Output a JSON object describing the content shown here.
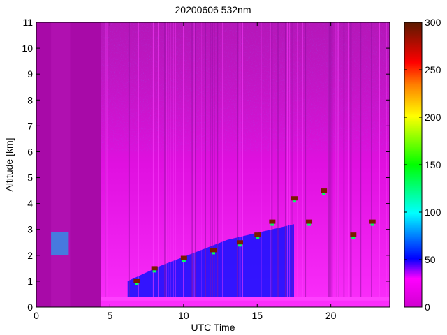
{
  "chart_data": {
    "type": "heatmap",
    "title": "20200606 532nm",
    "xlabel": "UTC Time",
    "ylabel": "Altitude [km]",
    "xlim": [
      0,
      24
    ],
    "ylim": [
      0,
      11
    ],
    "xticks": [
      0,
      5,
      10,
      15,
      20
    ],
    "yticks": [
      0,
      1,
      2,
      3,
      4,
      5,
      6,
      7,
      8,
      9,
      10,
      11
    ],
    "colorbar": {
      "range": [
        0,
        300
      ],
      "ticks": [
        0,
        50,
        100,
        150,
        200,
        250,
        300
      ],
      "colormap": [
        "#d400d4",
        "#ff00ff",
        "#0000ff",
        "#00ffff",
        "#00ff00",
        "#ffff00",
        "#ff8000",
        "#ff0000",
        "#5a1a00"
      ]
    },
    "background_color": "#b010b0",
    "data_gap_intervals_utc": [
      [
        0,
        1.0
      ],
      [
        2.3,
        4.4
      ]
    ],
    "features": [
      {
        "type": "enhanced_signal_region",
        "x_range": [
          4.4,
          24
        ],
        "y_range": [
          0,
          11
        ],
        "color": "#ff00ff"
      },
      {
        "type": "near_surface_layer",
        "x_range": [
          4.4,
          24
        ],
        "y_range": [
          0.25,
          0.4
        ],
        "color": "#ff40ff"
      },
      {
        "type": "aerosol_layer",
        "x_range": [
          6.2,
          17.5
        ],
        "top_km": [
          1.0,
          1.6,
          2.1,
          2.6,
          2.9,
          3.2
        ],
        "color": "#1010ff"
      },
      {
        "type": "cloud_edges",
        "points": [
          [
            6.8,
            1.0
          ],
          [
            8.0,
            1.5
          ],
          [
            10.0,
            1.9
          ],
          [
            12.0,
            2.2
          ],
          [
            13.8,
            2.5
          ],
          [
            15.0,
            2.8
          ],
          [
            16.0,
            3.3
          ],
          [
            17.5,
            4.2
          ],
          [
            18.5,
            3.3
          ],
          [
            19.5,
            4.5
          ],
          [
            21.5,
            2.8
          ],
          [
            22.8,
            3.3
          ]
        ],
        "color": "#7a1a00"
      },
      {
        "type": "cloud_patch",
        "x_range": [
          1.0,
          2.2
        ],
        "y_range": [
          2.0,
          2.9
        ],
        "color": "#00c0ff"
      }
    ]
  }
}
